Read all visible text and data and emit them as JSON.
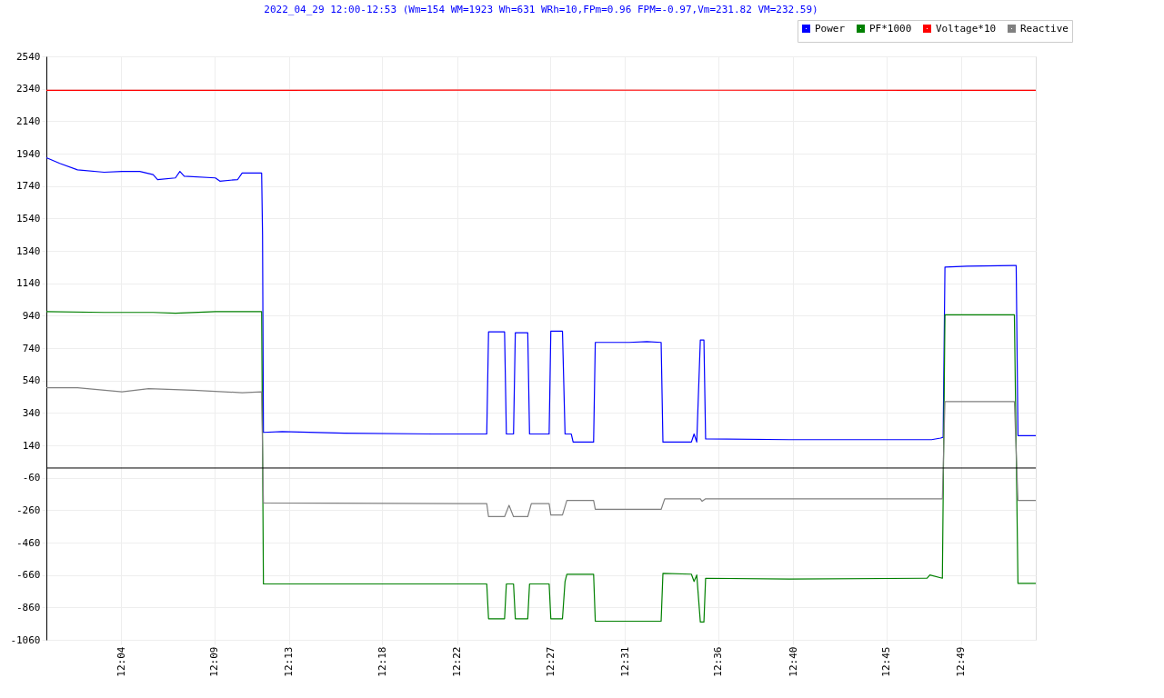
{
  "chart_data": {
    "type": "line",
    "title": "2022_04_29 12:00-12:53 (Wm=154 WM=1923 Wh=631 WRh=10,FPm=0.96 FPM=-0.97,Vm=231.82 VM=232.59)",
    "xlim": [
      12.0,
      12.8834
    ],
    "xticks": [
      {
        "value": 12.0667,
        "label": "12:04"
      },
      {
        "value": 12.15,
        "label": "12:09"
      },
      {
        "value": 12.2167,
        "label": "12:13"
      },
      {
        "value": 12.3,
        "label": "12:18"
      },
      {
        "value": 12.3667,
        "label": "12:22"
      },
      {
        "value": 12.45,
        "label": "12:27"
      },
      {
        "value": 12.5167,
        "label": "12:31"
      },
      {
        "value": 12.6,
        "label": "12:36"
      },
      {
        "value": 12.6667,
        "label": "12:40"
      },
      {
        "value": 12.75,
        "label": "12:45"
      },
      {
        "value": 12.8167,
        "label": "12:49"
      }
    ],
    "ylim": [
      -1060,
      2540
    ],
    "yticks": [
      -1060,
      -860,
      -660,
      -460,
      -260,
      -60,
      140,
      340,
      540,
      740,
      940,
      1140,
      1340,
      1540,
      1740,
      1940,
      2140,
      2340,
      2540
    ],
    "grid": true,
    "legend": "top right",
    "marker": "none",
    "line_style": "solid",
    "ref_lines": [
      {
        "axis": "y",
        "value": 0,
        "color": "#000000"
      }
    ],
    "series": [
      {
        "name": "Power",
        "color": "#0000ff",
        "x": [
          12.0,
          12.0119,
          12.0278,
          12.0516,
          12.0675,
          12.0834,
          12.0953,
          12.0993,
          12.1152,
          12.1192,
          12.1231,
          12.1509,
          12.1549,
          12.1708,
          12.1748,
          12.1922,
          12.193,
          12.1938,
          12.2105,
          12.2661,
          12.3456,
          12.3932,
          12.3948,
          12.4091,
          12.4107,
          12.4171,
          12.4187,
          12.4298,
          12.4314,
          12.4489,
          12.4504,
          12.4608,
          12.4631,
          12.4687,
          12.4703,
          12.4886,
          12.4901,
          12.5203,
          12.5362,
          12.5489,
          12.5505,
          12.5759,
          12.5783,
          12.5807,
          12.5839,
          12.5871,
          12.5886,
          12.6633,
          12.7428,
          12.7904,
          12.7984,
          12.8007,
          12.8023,
          12.8222,
          12.8643,
          12.8659,
          12.8675,
          12.8834
        ],
        "values": [
          1915,
          1880,
          1840,
          1825,
          1830,
          1830,
          1810,
          1780,
          1790,
          1830,
          1800,
          1790,
          1770,
          1780,
          1820,
          1820,
          1440,
          220,
          225,
          215,
          210,
          210,
          840,
          840,
          210,
          210,
          835,
          835,
          210,
          210,
          845,
          845,
          210,
          210,
          160,
          160,
          775,
          775,
          780,
          775,
          160,
          160,
          210,
          160,
          790,
          790,
          180,
          175,
          175,
          175,
          185,
          190,
          1240,
          1245,
          1250,
          1250,
          200,
          200
        ]
      },
      {
        "name": "PF*1000",
        "color": "#008000",
        "x": [
          12.0,
          12.0516,
          12.0953,
          12.1152,
          12.1509,
          12.1922,
          12.1938,
          12.3932,
          12.3948,
          12.4091,
          12.4107,
          12.4171,
          12.4187,
          12.4298,
          12.4314,
          12.4489,
          12.4504,
          12.4608,
          12.4631,
          12.4647,
          12.4886,
          12.4901,
          12.5489,
          12.5505,
          12.5759,
          12.5783,
          12.5807,
          12.5839,
          12.5871,
          12.5886,
          12.6633,
          12.7864,
          12.7888,
          12.8,
          12.8023,
          12.8643,
          12.8675,
          12.8834
        ],
        "values": [
          965,
          960,
          960,
          955,
          965,
          965,
          -715,
          -715,
          -930,
          -930,
          -715,
          -715,
          -930,
          -930,
          -715,
          -715,
          -930,
          -930,
          -700,
          -655,
          -655,
          -945,
          -945,
          -650,
          -655,
          -700,
          -660,
          -950,
          -950,
          -680,
          -685,
          -680,
          -660,
          -680,
          945,
          945,
          -712,
          -712
        ]
      },
      {
        "name": "Voltage*10",
        "color": "#ff0000",
        "x": [
          12.0,
          12.2,
          12.4,
          12.6,
          12.8,
          12.8834
        ],
        "values": [
          2330,
          2330,
          2332,
          2331,
          2330,
          2330
        ]
      },
      {
        "name": "Reactive",
        "color": "#808080",
        "x": [
          12.0,
          12.0278,
          12.0675,
          12.0913,
          12.1311,
          12.1748,
          12.1922,
          12.1938,
          12.3932,
          12.3948,
          12.4091,
          12.4131,
          12.4171,
          12.4298,
          12.433,
          12.4489,
          12.4504,
          12.4608,
          12.4647,
          12.4886,
          12.4901,
          12.5489,
          12.5521,
          12.5839,
          12.5855,
          12.5886,
          12.8,
          12.8023,
          12.8643,
          12.8675,
          12.8834
        ],
        "values": [
          495,
          495,
          470,
          490,
          480,
          465,
          470,
          -215,
          -220,
          -300,
          -300,
          -230,
          -300,
          -300,
          -220,
          -220,
          -290,
          -290,
          -200,
          -200,
          -255,
          -255,
          -190,
          -190,
          -205,
          -190,
          -190,
          410,
          410,
          -200,
          -200
        ]
      }
    ]
  }
}
